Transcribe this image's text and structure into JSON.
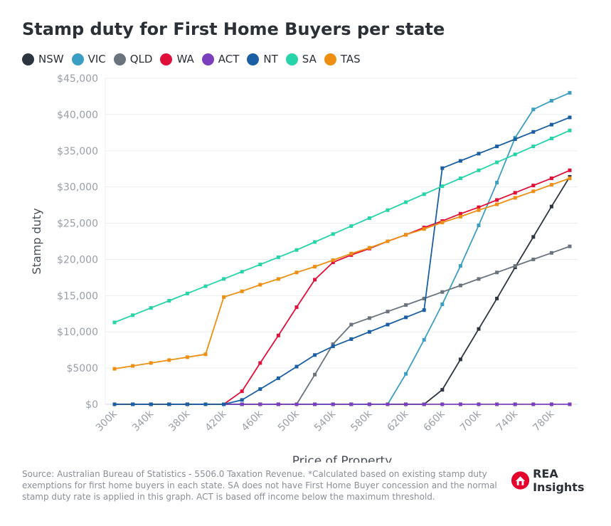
{
  "chart_data": {
    "type": "line",
    "title": "Stamp duty for First Home Buyers per state",
    "xlabel": "Price of Property",
    "ylabel": "Stamp duty",
    "ylim": [
      0,
      45000
    ],
    "y_ticks": [
      0,
      5000,
      10000,
      15000,
      20000,
      25000,
      30000,
      35000,
      40000,
      45000
    ],
    "y_tick_labels": [
      "$0",
      "$5000",
      "$10,000",
      "$15,000",
      "$20,000",
      "$25,000",
      "$30,000",
      "$35,000",
      "$40,000",
      "$45,000"
    ],
    "x_ticks": [
      300,
      340,
      380,
      420,
      460,
      500,
      540,
      580,
      620,
      660,
      700,
      740,
      780
    ],
    "x_tick_labels": [
      "300k",
      "340k",
      "380k",
      "420k",
      "460k",
      "500k",
      "540k",
      "580k",
      "620k",
      "660k",
      "700k",
      "740k",
      "780k"
    ],
    "xlim": [
      300,
      800
    ],
    "x": [
      300,
      320,
      340,
      360,
      380,
      400,
      420,
      440,
      460,
      480,
      500,
      520,
      540,
      560,
      580,
      600,
      620,
      640,
      660,
      680,
      700,
      720,
      740,
      760,
      780,
      800
    ],
    "grid": true,
    "legend_position": "top-left",
    "series": [
      {
        "name": "NSW",
        "color": "#2d3540",
        "values": [
          0,
          0,
          0,
          0,
          0,
          0,
          0,
          0,
          0,
          0,
          0,
          0,
          0,
          0,
          0,
          0,
          0,
          0,
          2000,
          6200,
          10400,
          14600,
          18900,
          23100,
          27300,
          31400
        ]
      },
      {
        "name": "VIC",
        "color": "#3d9ec4",
        "values": [
          0,
          0,
          0,
          0,
          0,
          0,
          0,
          0,
          0,
          0,
          0,
          0,
          0,
          0,
          0,
          0,
          4200,
          8900,
          13800,
          19100,
          24700,
          30600,
          36800,
          40700,
          41900,
          43000
        ]
      },
      {
        "name": "QLD",
        "color": "#6b737c",
        "values": [
          0,
          0,
          0,
          0,
          0,
          0,
          0,
          0,
          0,
          0,
          0,
          4100,
          8300,
          11000,
          11900,
          12800,
          13700,
          14600,
          15500,
          16400,
          17300,
          18200,
          19100,
          20000,
          20900,
          21800
        ]
      },
      {
        "name": "WA",
        "color": "#e0103a",
        "values": [
          0,
          0,
          0,
          0,
          0,
          0,
          0,
          1800,
          5700,
          9500,
          13400,
          17200,
          19600,
          20600,
          21500,
          22500,
          23400,
          24400,
          25300,
          26300,
          27200,
          28200,
          29200,
          30200,
          31200,
          32300
        ]
      },
      {
        "name": "ACT",
        "color": "#7b3fbe",
        "values": [
          0,
          0,
          0,
          0,
          0,
          0,
          0,
          0,
          0,
          0,
          0,
          0,
          0,
          0,
          0,
          0,
          0,
          0,
          0,
          0,
          0,
          0,
          0,
          0,
          0,
          0
        ]
      },
      {
        "name": "NT",
        "color": "#1a5fa3",
        "values": [
          0,
          0,
          0,
          0,
          0,
          0,
          0,
          600,
          2100,
          3600,
          5200,
          6800,
          8000,
          9000,
          10000,
          11000,
          12000,
          13000,
          32600,
          33600,
          34600,
          35600,
          36600,
          37600,
          38600,
          39600
        ]
      },
      {
        "name": "SA",
        "color": "#27d3a9",
        "values": [
          11300,
          12300,
          13300,
          14300,
          15300,
          16300,
          17300,
          18300,
          19300,
          20300,
          21300,
          22400,
          23500,
          24600,
          25700,
          26800,
          27900,
          29000,
          30100,
          31200,
          32300,
          33400,
          34500,
          35600,
          36700,
          37800
        ]
      },
      {
        "name": "TAS",
        "color": "#ee8f12",
        "values": [
          4900,
          5300,
          5700,
          6100,
          6500,
          6900,
          14800,
          15600,
          16500,
          17300,
          18200,
          19000,
          19900,
          20800,
          21600,
          22500,
          23400,
          24200,
          25100,
          25900,
          26800,
          27600,
          28500,
          29400,
          30300,
          31200
        ]
      }
    ]
  },
  "footer": {
    "source": "Source: Australian Bureau of Statistics - 5506.0 Taxation Revenue. *Calculated based on existing stamp duty exemptions for first home buyers in each state. SA does not have First Home Buyer concession and the normal stamp duty rate is applied in this graph. ACT is based off income below the maximum threshold."
  },
  "brand": {
    "name": "REA Insights",
    "color": "#e4002b"
  }
}
